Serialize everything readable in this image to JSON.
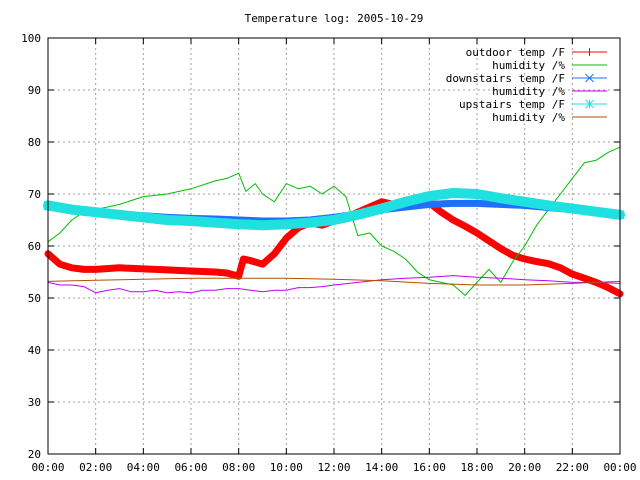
{
  "chart_data": {
    "type": "line",
    "title": "Temperature log: 2005-10-29",
    "xlabel": "",
    "ylabel": "",
    "xlim": [
      "00:00",
      "24:00"
    ],
    "ylim": [
      20,
      100
    ],
    "x_tick_labels": [
      "00:00",
      "02:00",
      "04:00",
      "06:00",
      "08:00",
      "10:00",
      "12:00",
      "14:00",
      "16:00",
      "18:00",
      "20:00",
      "22:00",
      "00:00"
    ],
    "y_tick_labels": [
      "20",
      "30",
      "40",
      "50",
      "60",
      "70",
      "80",
      "90",
      "100"
    ],
    "grid": true,
    "legend_position": "top-right",
    "series": [
      {
        "name": "outdoor temp /F",
        "color": "#ff0000",
        "marker": "plus",
        "hours": [
          0,
          0.5,
          1,
          1.5,
          2,
          3,
          4,
          5,
          6,
          7,
          7.5,
          8,
          8.2,
          8.5,
          9,
          9.5,
          10,
          10.5,
          11,
          11.5,
          12,
          12.5,
          13,
          13.5,
          14,
          14.5,
          15,
          15.5,
          16,
          16.5,
          17,
          17.5,
          18,
          18.5,
          19,
          19.5,
          20,
          20.5,
          21,
          21.5,
          22,
          22.5,
          23,
          23.5,
          24
        ],
        "values": [
          58.5,
          56.5,
          55.8,
          55.5,
          55.5,
          55.8,
          55.6,
          55.4,
          55.2,
          55.0,
          54.8,
          54.2,
          57.5,
          57.2,
          56.5,
          58.5,
          61.5,
          63.5,
          64.5,
          64.0,
          64.8,
          65.5,
          66.5,
          67.5,
          68.5,
          68.0,
          68.8,
          68.6,
          68.3,
          66.5,
          65.0,
          63.8,
          62.5,
          61.0,
          59.5,
          58.2,
          57.5,
          57.0,
          56.6,
          55.8,
          54.6,
          53.8,
          53.0,
          52.0,
          50.8
        ]
      },
      {
        "name": "humidity /%",
        "color": "#00c000",
        "marker": "none",
        "hours": [
          0,
          0.5,
          1,
          1.5,
          2,
          3,
          4,
          5,
          6,
          7,
          7.5,
          8,
          8.3,
          8.7,
          9,
          9.5,
          10,
          10.5,
          11,
          11.5,
          12,
          12.5,
          13,
          13.5,
          14,
          14.5,
          15,
          15.5,
          16,
          16.5,
          17,
          17.5,
          18,
          18.5,
          19,
          19.5,
          20,
          20.5,
          21,
          21.5,
          22,
          22.5,
          23,
          23.5,
          24
        ],
        "values": [
          60.8,
          62.5,
          65.0,
          66.5,
          67.0,
          68.0,
          69.5,
          70.0,
          71.0,
          72.5,
          73.0,
          74.0,
          70.5,
          72.0,
          70.0,
          68.5,
          72.0,
          71.0,
          71.5,
          70.0,
          71.5,
          69.5,
          62.0,
          62.5,
          60.0,
          59.0,
          57.5,
          55.0,
          53.5,
          53.0,
          52.5,
          50.5,
          53.0,
          55.5,
          53.0,
          57.0,
          60.0,
          64.0,
          67.0,
          70.0,
          73.0,
          76.0,
          76.5,
          78.0,
          79.0
        ]
      },
      {
        "name": "downstairs temp /F",
        "color": "#2070ff",
        "marker": "cross",
        "hours": [
          0,
          1,
          2,
          3,
          4,
          5,
          6,
          7,
          8,
          9,
          10,
          11,
          12,
          13,
          14,
          15,
          16,
          17,
          18,
          19,
          20,
          21,
          22,
          23,
          24
        ],
        "values": [
          67.5,
          67.0,
          66.5,
          66.0,
          65.8,
          65.5,
          65.3,
          65.2,
          65.0,
          64.8,
          64.8,
          65.0,
          65.5,
          66.2,
          67.0,
          67.5,
          68.0,
          68.2,
          68.2,
          68.0,
          67.8,
          67.4,
          67.0,
          66.6,
          66.0
        ]
      },
      {
        "name": "humidity /%",
        "color": "#c000ff",
        "marker": "none",
        "hours": [
          0,
          0.5,
          1,
          1.5,
          2,
          2.5,
          3,
          3.5,
          4,
          4.5,
          5,
          5.5,
          6,
          6.5,
          7,
          7.5,
          8,
          8.5,
          9,
          9.5,
          10,
          10.5,
          11,
          11.5,
          12,
          13,
          14,
          15,
          16,
          17,
          18,
          19,
          20,
          21,
          22,
          23,
          24
        ],
        "values": [
          53.0,
          52.5,
          52.5,
          52.2,
          51.0,
          51.5,
          51.8,
          51.2,
          51.2,
          51.5,
          51.0,
          51.2,
          51.0,
          51.5,
          51.5,
          51.8,
          51.8,
          51.5,
          51.2,
          51.5,
          51.5,
          52.0,
          52.0,
          52.2,
          52.5,
          53.0,
          53.5,
          53.8,
          54.0,
          54.3,
          54.0,
          53.8,
          53.5,
          53.3,
          53.0,
          53.0,
          52.8
        ]
      },
      {
        "name": "upstairs temp /F",
        "color": "#20e0e0",
        "marker": "star",
        "hours": [
          0,
          1,
          2,
          3,
          4,
          5,
          6,
          7,
          8,
          9,
          10,
          11,
          12,
          13,
          14,
          15,
          16,
          17,
          18,
          19,
          20,
          21,
          22,
          23,
          24
        ],
        "values": [
          67.8,
          67.0,
          66.5,
          66.0,
          65.5,
          65.0,
          64.8,
          64.5,
          64.2,
          64.0,
          64.2,
          64.5,
          65.0,
          66.0,
          67.2,
          68.5,
          69.6,
          70.2,
          70.0,
          69.2,
          68.5,
          67.8,
          67.2,
          66.6,
          66.0
        ]
      },
      {
        "name": "humidity /%",
        "color": "#b05000",
        "marker": "none",
        "hours": [
          0,
          2,
          4,
          6,
          8,
          10,
          12,
          14,
          16,
          18,
          20,
          22,
          24
        ],
        "values": [
          53.2,
          53.4,
          53.6,
          53.8,
          53.8,
          53.8,
          53.6,
          53.3,
          52.8,
          52.5,
          52.5,
          52.8,
          53.2
        ]
      }
    ]
  }
}
